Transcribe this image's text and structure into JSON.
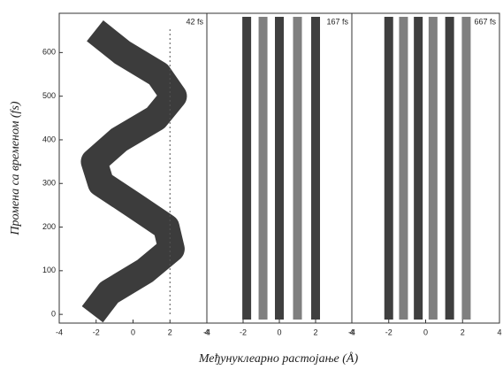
{
  "chart_data": [
    {
      "type": "line",
      "label": "42 fs",
      "x": [
        -2.2,
        -1.3,
        0.66,
        2.08,
        1.8,
        0.05,
        -1.74,
        -2.11,
        -0.77,
        1.23,
        2.2,
        1.38,
        -0.58,
        -2.06
      ],
      "values": [
        0,
        50,
        100,
        150,
        200,
        250,
        300,
        350,
        400,
        450,
        500,
        550,
        600,
        650
      ],
      "color": "#1a1a1a",
      "xlim": [
        -4,
        4
      ],
      "xticks": [
        -4,
        -2,
        0,
        2,
        4
      ],
      "ylim": [
        -20,
        690
      ],
      "yticks": [
        0,
        100,
        200,
        300,
        400,
        500,
        600
      ],
      "ylabel": "Промена са временом (fs)"
    },
    {
      "type": "stripes",
      "label": "167 fs",
      "x": [
        -1.8,
        -0.9,
        0,
        1.0,
        2.0
      ],
      "color": "#2a2a2a",
      "xlim": [
        -4,
        4
      ],
      "xticks": [
        -4,
        -2,
        0,
        2,
        4
      ],
      "ylim": [
        -20,
        690
      ],
      "xlabel": "Међунуклеарно растојање (Å)"
    },
    {
      "type": "stripes",
      "label": "667 fs",
      "x": [
        -2.0,
        -1.2,
        -0.4,
        0.4,
        1.3,
        2.2
      ],
      "color": "#2a2a2a",
      "xlim": [
        -4,
        4
      ],
      "xticks": [
        -4,
        -2,
        0,
        2,
        4
      ],
      "ylim": [
        -20,
        690
      ]
    }
  ]
}
